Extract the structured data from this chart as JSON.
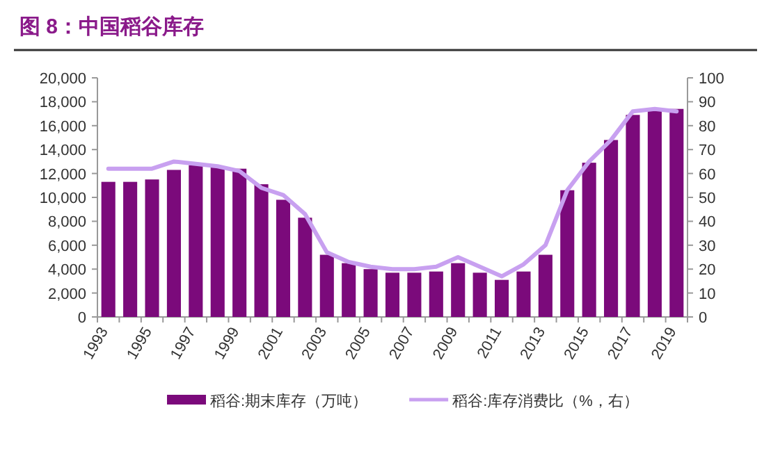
{
  "chart_data": {
    "type": "bar",
    "title": "图 8：中国稻谷库存",
    "categories": [
      "1993",
      null,
      "1995",
      null,
      "1997",
      null,
      "1999",
      null,
      "2001",
      null,
      "2003",
      null,
      "2005",
      null,
      "2007",
      null,
      "2009",
      null,
      "2011",
      null,
      "2013",
      null,
      "2015",
      null,
      "2017",
      null,
      "2019"
    ],
    "series": [
      {
        "name": "稻谷:期末库存（万吨）",
        "color": "#7b0a7b",
        "values": [
          11300,
          11300,
          11500,
          12300,
          12700,
          12600,
          12400,
          11100,
          9800,
          8300,
          5200,
          4500,
          4000,
          3700,
          3700,
          3800,
          4500,
          3700,
          3100,
          3800,
          5200,
          10600,
          12900,
          14800,
          16900,
          17500,
          17400
        ]
      },
      {
        "name": "稻谷:库存消费比（%，右）",
        "type": "line",
        "axis": "y2",
        "color": "#c8a0f0",
        "values": [
          62,
          62,
          62,
          65,
          64,
          63,
          61,
          54,
          51,
          43,
          27,
          23,
          21,
          20,
          20,
          21,
          25,
          21,
          17,
          22,
          30,
          53,
          65,
          74,
          86,
          87,
          86
        ]
      }
    ],
    "ylim": [
      0,
      20000
    ],
    "yticks": [
      {
        "value": 0,
        "label": "0"
      },
      {
        "value": 2000,
        "label": "2,000"
      },
      {
        "value": 4000,
        "label": "4,000"
      },
      {
        "value": 6000,
        "label": "6,000"
      },
      {
        "value": 8000,
        "label": "8,000"
      },
      {
        "value": 10000,
        "label": "10,000"
      },
      {
        "value": 12000,
        "label": "12,000"
      },
      {
        "value": 14000,
        "label": "14,000"
      },
      {
        "value": 16000,
        "label": "16,000"
      },
      {
        "value": 18000,
        "label": "18,000"
      },
      {
        "value": 20000,
        "label": "20,000"
      }
    ],
    "y2lim": [
      0,
      100
    ],
    "y2ticks": [
      0,
      10,
      20,
      30,
      40,
      50,
      60,
      70,
      80,
      90,
      100
    ],
    "legend": "bottom"
  }
}
